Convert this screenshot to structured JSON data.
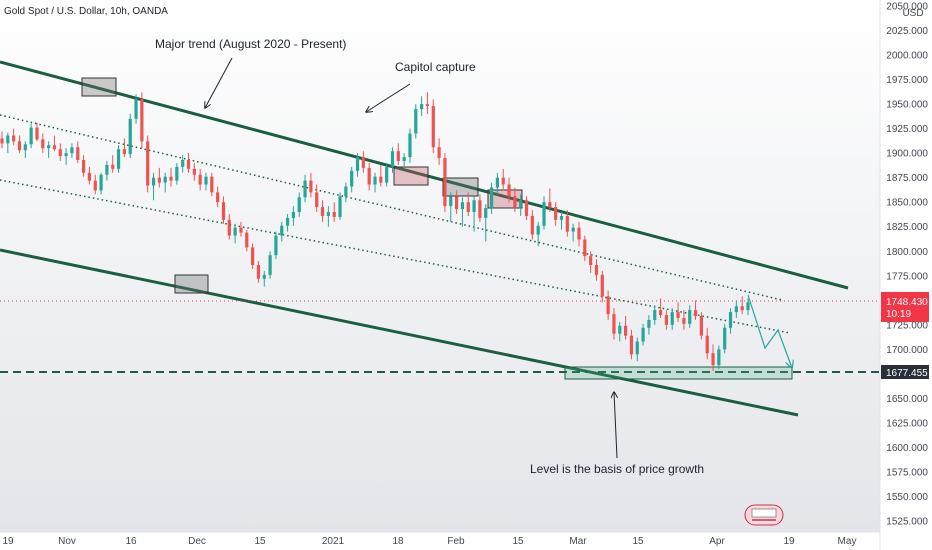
{
  "header": {
    "title": "Gold Spot / U.S. Dollar, 10h, OANDA",
    "currency": "USD"
  },
  "chart_data": {
    "type": "candlestick",
    "ylim": [
      1520,
      2052
    ],
    "y_ticks": [
      1525,
      1550,
      1575,
      1600,
      1625,
      1650,
      1675,
      1700,
      1725,
      1750,
      1775,
      1800,
      1825,
      1850,
      1875,
      1900,
      1925,
      1950,
      1975,
      2000,
      2025,
      2050
    ],
    "x_ticks": [
      "19",
      "Nov",
      "16",
      "Dec",
      "15",
      "2021",
      "18",
      "Feb",
      "15",
      "Mar",
      "15",
      "Apr",
      "19",
      "May"
    ],
    "candles": [
      [
        1915,
        1922,
        1905,
        1910
      ],
      [
        1910,
        1921,
        1900,
        1918
      ],
      [
        1918,
        1925,
        1908,
        1912
      ],
      [
        1912,
        1918,
        1900,
        1903
      ],
      [
        1903,
        1912,
        1895,
        1909
      ],
      [
        1909,
        1930,
        1905,
        1926
      ],
      [
        1926,
        1931,
        1912,
        1914
      ],
      [
        1914,
        1920,
        1900,
        1905
      ],
      [
        1905,
        1912,
        1895,
        1908
      ],
      [
        1908,
        1918,
        1902,
        1904
      ],
      [
        1904,
        1910,
        1892,
        1897
      ],
      [
        1897,
        1905,
        1888,
        1900
      ],
      [
        1900,
        1910,
        1895,
        1906
      ],
      [
        1906,
        1912,
        1890,
        1893
      ],
      [
        1893,
        1898,
        1876,
        1880
      ],
      [
        1880,
        1886,
        1868,
        1872
      ],
      [
        1872,
        1878,
        1858,
        1862
      ],
      [
        1862,
        1880,
        1858,
        1878
      ],
      [
        1878,
        1892,
        1872,
        1888
      ],
      [
        1888,
        1898,
        1880,
        1884
      ],
      [
        1884,
        1908,
        1880,
        1904
      ],
      [
        1904,
        1915,
        1896,
        1899
      ],
      [
        1899,
        1940,
        1895,
        1935
      ],
      [
        1935,
        1960,
        1930,
        1955
      ],
      [
        1955,
        1962,
        1905,
        1912
      ],
      [
        1912,
        1918,
        1860,
        1867
      ],
      [
        1867,
        1880,
        1852,
        1875
      ],
      [
        1875,
        1885,
        1865,
        1870
      ],
      [
        1870,
        1880,
        1860,
        1876
      ],
      [
        1876,
        1885,
        1866,
        1872
      ],
      [
        1872,
        1890,
        1868,
        1886
      ],
      [
        1886,
        1898,
        1880,
        1893
      ],
      [
        1893,
        1900,
        1880,
        1884
      ],
      [
        1884,
        1890,
        1872,
        1878
      ],
      [
        1878,
        1884,
        1862,
        1868
      ],
      [
        1868,
        1880,
        1862,
        1876
      ],
      [
        1876,
        1880,
        1856,
        1860
      ],
      [
        1860,
        1866,
        1845,
        1850
      ],
      [
        1850,
        1856,
        1828,
        1832
      ],
      [
        1832,
        1838,
        1812,
        1816
      ],
      [
        1816,
        1828,
        1808,
        1824
      ],
      [
        1824,
        1830,
        1815,
        1819
      ],
      [
        1819,
        1822,
        1800,
        1804
      ],
      [
        1804,
        1808,
        1782,
        1786
      ],
      [
        1786,
        1790,
        1768,
        1772
      ],
      [
        1772,
        1780,
        1764,
        1776
      ],
      [
        1776,
        1800,
        1772,
        1796
      ],
      [
        1796,
        1820,
        1792,
        1816
      ],
      [
        1816,
        1830,
        1810,
        1826
      ],
      [
        1826,
        1838,
        1820,
        1834
      ],
      [
        1834,
        1846,
        1826,
        1840
      ],
      [
        1840,
        1860,
        1835,
        1855
      ],
      [
        1855,
        1878,
        1850,
        1872
      ],
      [
        1872,
        1880,
        1855,
        1860
      ],
      [
        1860,
        1868,
        1840,
        1845
      ],
      [
        1845,
        1852,
        1830,
        1836
      ],
      [
        1836,
        1846,
        1825,
        1840
      ],
      [
        1840,
        1850,
        1830,
        1835
      ],
      [
        1835,
        1860,
        1832,
        1856
      ],
      [
        1856,
        1870,
        1850,
        1866
      ],
      [
        1866,
        1886,
        1860,
        1882
      ],
      [
        1882,
        1900,
        1876,
        1896
      ],
      [
        1896,
        1902,
        1880,
        1885
      ],
      [
        1885,
        1890,
        1862,
        1868
      ],
      [
        1868,
        1880,
        1860,
        1876
      ],
      [
        1876,
        1888,
        1866,
        1870
      ],
      [
        1870,
        1890,
        1866,
        1886
      ],
      [
        1886,
        1906,
        1880,
        1902
      ],
      [
        1902,
        1910,
        1888,
        1892
      ],
      [
        1892,
        1900,
        1886,
        1896
      ],
      [
        1896,
        1925,
        1890,
        1920
      ],
      [
        1920,
        1950,
        1915,
        1945
      ],
      [
        1945,
        1958,
        1938,
        1950
      ],
      [
        1950,
        1962,
        1940,
        1948
      ],
      [
        1948,
        1955,
        1900,
        1906
      ],
      [
        1906,
        1915,
        1888,
        1895
      ],
      [
        1895,
        1900,
        1840,
        1846
      ],
      [
        1846,
        1860,
        1830,
        1856
      ],
      [
        1856,
        1862,
        1838,
        1843
      ],
      [
        1843,
        1855,
        1825,
        1850
      ],
      [
        1850,
        1860,
        1836,
        1840
      ],
      [
        1840,
        1856,
        1820,
        1852
      ],
      [
        1852,
        1858,
        1830,
        1834
      ],
      [
        1834,
        1848,
        1810,
        1844
      ],
      [
        1844,
        1870,
        1838,
        1865
      ],
      [
        1865,
        1880,
        1858,
        1875
      ],
      [
        1875,
        1884,
        1862,
        1868
      ],
      [
        1868,
        1875,
        1850,
        1856
      ],
      [
        1856,
        1865,
        1840,
        1845
      ],
      [
        1845,
        1858,
        1836,
        1852
      ],
      [
        1852,
        1856,
        1832,
        1836
      ],
      [
        1836,
        1842,
        1812,
        1817
      ],
      [
        1817,
        1830,
        1805,
        1826
      ],
      [
        1826,
        1856,
        1822,
        1850
      ],
      [
        1850,
        1864,
        1840,
        1845
      ],
      [
        1845,
        1850,
        1826,
        1832
      ],
      [
        1832,
        1840,
        1822,
        1836
      ],
      [
        1836,
        1842,
        1815,
        1820
      ],
      [
        1820,
        1828,
        1810,
        1824
      ],
      [
        1824,
        1830,
        1805,
        1812
      ],
      [
        1812,
        1816,
        1790,
        1795
      ],
      [
        1795,
        1800,
        1778,
        1786
      ],
      [
        1786,
        1792,
        1770,
        1776
      ],
      [
        1776,
        1780,
        1748,
        1754
      ],
      [
        1754,
        1760,
        1730,
        1736
      ],
      [
        1736,
        1742,
        1710,
        1716
      ],
      [
        1716,
        1728,
        1708,
        1724
      ],
      [
        1724,
        1734,
        1710,
        1714
      ],
      [
        1714,
        1720,
        1690,
        1695
      ],
      [
        1695,
        1712,
        1688,
        1708
      ],
      [
        1708,
        1726,
        1704,
        1722
      ],
      [
        1722,
        1735,
        1715,
        1730
      ],
      [
        1730,
        1745,
        1725,
        1740
      ],
      [
        1740,
        1752,
        1732,
        1735
      ],
      [
        1735,
        1740,
        1720,
        1725
      ],
      [
        1725,
        1742,
        1720,
        1738
      ],
      [
        1738,
        1748,
        1728,
        1732
      ],
      [
        1732,
        1740,
        1720,
        1726
      ],
      [
        1726,
        1745,
        1722,
        1740
      ],
      [
        1740,
        1750,
        1730,
        1734
      ],
      [
        1734,
        1738,
        1710,
        1714
      ],
      [
        1714,
        1722,
        1690,
        1696
      ],
      [
        1696,
        1705,
        1678,
        1684
      ],
      [
        1684,
        1704,
        1680,
        1700
      ],
      [
        1700,
        1726,
        1696,
        1722
      ],
      [
        1722,
        1742,
        1716,
        1738
      ],
      [
        1738,
        1750,
        1732,
        1744
      ],
      [
        1744,
        1754,
        1736,
        1740
      ],
      [
        1740,
        1752,
        1735,
        1748
      ]
    ],
    "last_price": 1748.43,
    "last_price_label": "1748.430",
    "countdown": "10:19",
    "support_level": 1677.455,
    "support_label": "1677.455",
    "annotations": [
      "Major trend (August 2020 - Present)",
      "Capitol capture",
      "Level is the basis of price growth"
    ],
    "colors": {
      "up": "#26a69a",
      "down": "#ef5350",
      "channel": "#1b5e40",
      "price_badge": "#f23645",
      "level_badge": "#2a2e39"
    }
  }
}
